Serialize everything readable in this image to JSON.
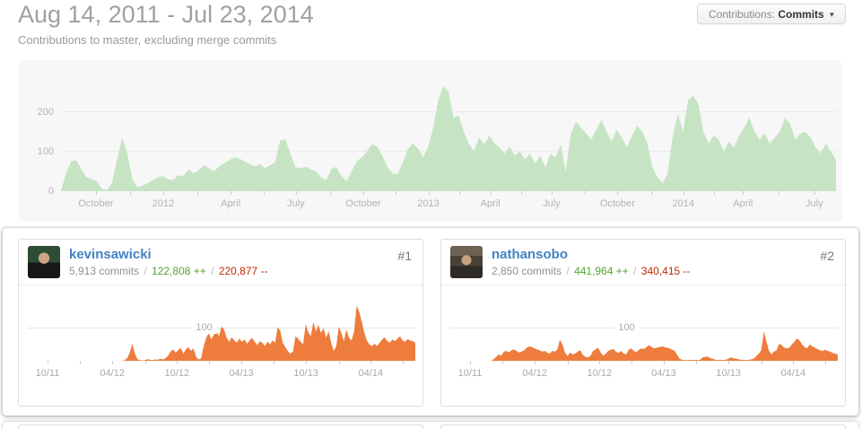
{
  "header": {
    "title": "Aug 14, 2011 - Jul 23, 2014",
    "subtitle": "Contributions to master, excluding merge commits"
  },
  "filter": {
    "label": "Contributions:",
    "value": "Commits",
    "caret": "▾"
  },
  "leaderboard": [
    {
      "rank": "#1",
      "username": "kevinsawicki",
      "commits": "5,913 commits",
      "separator": "/",
      "additions": "122,808 ++",
      "deletions": "220,877 --"
    },
    {
      "rank": "#2",
      "username": "nathansobo",
      "commits": "2,850 commits",
      "separator": "/",
      "additions": "441,964 ++",
      "deletions": "340,415 --"
    }
  ],
  "colors": {
    "link_blue": "#4183c4",
    "additions_green": "#55a532",
    "deletions_red": "#bd2c00",
    "area_green": "#c6e4c4",
    "area_orange": "#ee7c3c",
    "panel_gray": "#f7f7f7",
    "card_border": "#dddddd",
    "axis_label_gray": "#b0b0b0"
  },
  "chart_data": [
    {
      "name": "all-contributors-commits",
      "type": "area",
      "title": "Commits to master per week, all contributors",
      "x_range": [
        "Aug 14, 2011",
        "Jul 23, 2014"
      ],
      "color": "#c6e4c4",
      "grid_color": "#e9e9e9",
      "label_color": "#b3b3b3",
      "ylim": [
        0,
        330
      ],
      "ylabel_style": "outside",
      "yticks": [
        {
          "value": 200,
          "label": "200",
          "line": true
        },
        {
          "value": 100,
          "label": "100",
          "line": true
        },
        {
          "value": 0,
          "label": "0",
          "line": false
        }
      ],
      "xticks": [
        {
          "f": 0.045,
          "label": "October"
        },
        {
          "f": 0.132,
          "label": "2012"
        },
        {
          "f": 0.219,
          "label": "April"
        },
        {
          "f": 0.303,
          "label": "July"
        },
        {
          "f": 0.39,
          "label": "October"
        },
        {
          "f": 0.474,
          "label": "2013"
        },
        {
          "f": 0.554,
          "label": "April"
        },
        {
          "f": 0.633,
          "label": "July"
        },
        {
          "f": 0.718,
          "label": "October"
        },
        {
          "f": 0.803,
          "label": "2014"
        },
        {
          "f": 0.88,
          "label": "April"
        },
        {
          "f": 0.972,
          "label": "July"
        }
      ],
      "minor_xticks": [
        0.089,
        0.176,
        0.261,
        0.347,
        0.432,
        0.514,
        0.594,
        0.676,
        0.761,
        0.842,
        0.926
      ],
      "values": [
        2,
        45,
        75,
        78,
        55,
        35,
        30,
        25,
        6,
        3,
        20,
        80,
        135,
        95,
        30,
        10,
        14,
        20,
        28,
        35,
        38,
        30,
        28,
        40,
        38,
        55,
        45,
        52,
        65,
        58,
        50,
        62,
        70,
        78,
        85,
        82,
        75,
        68,
        62,
        68,
        58,
        65,
        72,
        128,
        130,
        95,
        60,
        58,
        62,
        55,
        50,
        35,
        28,
        55,
        62,
        38,
        25,
        50,
        75,
        85,
        100,
        118,
        112,
        90,
        62,
        45,
        42,
        70,
        105,
        120,
        108,
        85,
        110,
        160,
        230,
        265,
        250,
        185,
        190,
        150,
        120,
        100,
        135,
        118,
        140,
        120,
        110,
        95,
        112,
        90,
        100,
        80,
        95,
        70,
        90,
        60,
        95,
        85,
        118,
        50,
        145,
        175,
        160,
        145,
        130,
        155,
        180,
        150,
        125,
        155,
        135,
        110,
        140,
        165,
        150,
        120,
        60,
        35,
        20,
        45,
        140,
        195,
        150,
        230,
        240,
        220,
        150,
        120,
        140,
        130,
        100,
        125,
        110,
        140,
        160,
        185,
        150,
        130,
        145,
        120,
        135,
        150,
        185,
        170,
        130,
        145,
        150,
        135,
        110,
        95,
        120,
        100,
        78
      ]
    },
    {
      "name": "kevinsawicki-commits",
      "type": "area",
      "title": "kevinsawicki commits per week",
      "x_range": [
        "10/11",
        "04/14+"
      ],
      "color": "#ee7c3c",
      "grid_color": "#e5e5e5",
      "label_color": "#aaaaaa",
      "ylim": [
        0,
        230
      ],
      "ylabel_style": "inline",
      "ylabel_x": 0.455,
      "yticks": [
        {
          "value": 100,
          "label": "100",
          "line": true
        }
      ],
      "xticks": [
        {
          "f": 0.051,
          "label": "10/11"
        },
        {
          "f": 0.218,
          "label": "04/12"
        },
        {
          "f": 0.385,
          "label": "10/12"
        },
        {
          "f": 0.551,
          "label": "04/13"
        },
        {
          "f": 0.718,
          "label": "10/13"
        },
        {
          "f": 0.885,
          "label": "04/14"
        }
      ],
      "minor_xticks": [
        0.135,
        0.302,
        0.468,
        0.635,
        0.802,
        0.968
      ],
      "values": [
        0,
        0,
        0,
        0,
        0,
        0,
        0,
        0,
        0,
        0,
        0,
        0,
        0,
        0,
        0,
        0,
        0,
        0,
        0,
        0,
        0,
        0,
        0,
        0,
        0,
        0,
        0,
        0,
        0,
        0,
        0,
        0,
        0,
        0,
        0,
        0,
        0,
        0,
        2,
        8,
        25,
        52,
        22,
        5,
        2,
        1,
        2,
        5,
        3,
        2,
        4,
        3,
        6,
        4,
        8,
        15,
        28,
        35,
        25,
        32,
        40,
        22,
        35,
        42,
        30,
        38,
        12,
        4,
        8,
        45,
        70,
        85,
        65,
        80,
        90,
        75,
        105,
        95,
        70,
        58,
        72,
        62,
        55,
        68,
        58,
        65,
        52,
        62,
        70,
        58,
        48,
        60,
        55,
        45,
        58,
        50,
        62,
        55,
        103,
        92,
        55,
        42,
        30,
        22,
        28,
        75,
        68,
        58,
        50,
        112,
        88,
        75,
        118,
        90,
        110,
        85,
        100,
        70,
        90,
        55,
        30,
        45,
        105,
        85,
        60,
        95,
        70,
        62,
        90,
        168,
        150,
        120,
        85,
        62,
        50,
        45,
        52,
        45,
        55,
        65,
        72,
        60,
        55,
        65,
        60,
        68,
        75,
        62,
        58,
        66,
        62,
        60,
        55
      ]
    },
    {
      "name": "nathansobo-commits",
      "type": "area",
      "title": "nathansobo commits per week",
      "x_range": [
        "10/11",
        "04/14+"
      ],
      "color": "#ee7c3c",
      "grid_color": "#e5e5e5",
      "label_color": "#aaaaaa",
      "ylim": [
        0,
        230
      ],
      "ylabel_style": "inline",
      "ylabel_x": 0.455,
      "yticks": [
        {
          "value": 100,
          "label": "100",
          "line": true
        }
      ],
      "xticks": [
        {
          "f": 0.051,
          "label": "10/11"
        },
        {
          "f": 0.218,
          "label": "04/12"
        },
        {
          "f": 0.385,
          "label": "10/12"
        },
        {
          "f": 0.551,
          "label": "04/13"
        },
        {
          "f": 0.718,
          "label": "10/13"
        },
        {
          "f": 0.885,
          "label": "04/14"
        }
      ],
      "minor_xticks": [
        0.135,
        0.302,
        0.468,
        0.635,
        0.802,
        0.968
      ],
      "values": [
        0,
        0,
        0,
        0,
        0,
        0,
        0,
        0,
        0,
        0,
        0,
        0,
        0,
        0,
        0,
        0,
        0,
        5,
        12,
        20,
        15,
        28,
        30,
        26,
        32,
        35,
        30,
        25,
        28,
        32,
        40,
        44,
        42,
        38,
        35,
        32,
        28,
        30,
        25,
        22,
        30,
        28,
        35,
        64,
        50,
        25,
        15,
        25,
        20,
        22,
        28,
        32,
        18,
        12,
        10,
        15,
        30,
        35,
        40,
        25,
        16,
        22,
        30,
        34,
        36,
        28,
        24,
        30,
        22,
        20,
        34,
        38,
        30,
        26,
        34,
        38,
        36,
        42,
        48,
        42,
        38,
        40,
        42,
        44,
        42,
        40,
        38,
        34,
        30,
        18,
        6,
        3,
        2,
        2,
        3,
        2,
        3,
        2,
        3,
        10,
        12,
        13,
        8,
        6,
        3,
        2,
        3,
        2,
        3,
        6,
        10,
        8,
        6,
        5,
        3,
        3,
        2,
        3,
        4,
        6,
        14,
        22,
        32,
        90,
        60,
        30,
        20,
        28,
        32,
        52,
        48,
        40,
        38,
        40,
        50,
        58,
        68,
        62,
        50,
        42,
        38,
        50,
        44,
        40,
        36,
        32,
        30,
        34,
        30,
        28,
        24,
        22,
        18
      ]
    }
  ]
}
